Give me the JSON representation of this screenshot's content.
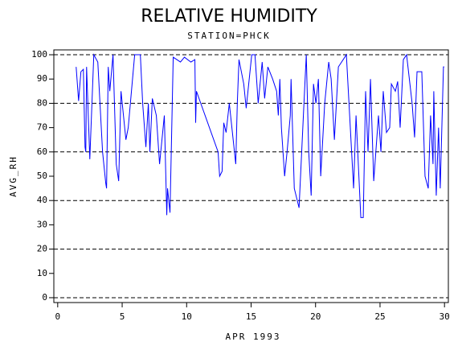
{
  "chart_data": {
    "type": "line",
    "title": "RELATIVE HUMIDITY",
    "subtitle": "STATION=PHCK",
    "x_label": "APR 1993",
    "y_label": "AVG_RH",
    "xlim": [
      -0.3,
      30.3
    ],
    "ylim": [
      -2,
      102
    ],
    "xticks": [
      0,
      5,
      10,
      15,
      20,
      25,
      30
    ],
    "yticks": [
      0,
      10,
      20,
      30,
      40,
      50,
      60,
      70,
      80,
      90,
      100
    ],
    "grid": true,
    "x": [
      1.43,
      1.62,
      1.8,
      1.99,
      2.12,
      2.18,
      2.24,
      2.49,
      2.8,
      3.11,
      3.48,
      3.73,
      3.79,
      3.92,
      4.04,
      4.29,
      4.54,
      4.73,
      4.91,
      5.29,
      5.47,
      5.97,
      6.41,
      6.59,
      6.84,
      7.03,
      7.15,
      7.34,
      7.65,
      7.9,
      8.27,
      8.46,
      8.52,
      8.71,
      8.96,
      9.52,
      9.83,
      10.33,
      10.64,
      10.7,
      10.76,
      12.44,
      12.56,
      12.75,
      12.88,
      13.06,
      13.31,
      13.81,
      13.93,
      14.06,
      14.43,
      14.62,
      15.05,
      15.3,
      15.55,
      15.86,
      16.05,
      16.3,
      16.67,
      16.98,
      17.11,
      17.23,
      17.35,
      17.6,
      17.79,
      18.04,
      18.1,
      18.35,
      18.72,
      19.1,
      19.28,
      19.47,
      19.66,
      19.84,
      20.03,
      20.22,
      20.4,
      20.71,
      21.02,
      21.21,
      21.46,
      21.77,
      22.39,
      22.95,
      23.14,
      23.51,
      23.7,
      23.88,
      24.07,
      24.26,
      24.51,
      24.88,
      25.07,
      25.25,
      25.5,
      25.75,
      25.88,
      26.19,
      26.37,
      26.56,
      26.81,
      27.06,
      27.49,
      27.68,
      27.87,
      28.24,
      28.49,
      28.74,
      28.92,
      29.11,
      29.17,
      29.36,
      29.54,
      29.67,
      29.92,
      29.98
    ],
    "series": [
      {
        "name": "AVG_RH",
        "color": "#0000ff",
        "values": [
          95,
          81,
          93,
          94,
          62,
          60,
          95,
          57,
          100,
          97,
          60,
          47,
          45,
          95,
          85,
          100,
          55,
          48,
          85,
          65,
          70,
          100,
          100,
          80,
          62,
          80,
          60,
          82,
          75,
          55,
          75,
          34,
          45,
          35,
          99,
          97,
          99,
          97,
          98,
          72,
          85,
          60,
          50,
          52,
          72,
          68,
          80,
          55,
          80,
          98,
          88,
          78,
          100,
          100,
          80,
          97,
          82,
          95,
          90,
          85,
          75,
          90,
          70,
          50,
          60,
          75,
          90,
          45,
          37,
          80,
          100,
          60,
          42,
          88,
          80,
          90,
          50,
          80,
          97,
          90,
          65,
          95,
          100,
          45,
          75,
          33,
          33,
          85,
          60,
          90,
          48,
          75,
          60,
          85,
          68,
          70,
          88,
          85,
          89,
          70,
          98,
          100,
          80,
          66,
          93,
          93,
          50,
          45,
          75,
          55,
          85,
          42,
          70,
          45,
          95,
          95
        ]
      }
    ]
  }
}
